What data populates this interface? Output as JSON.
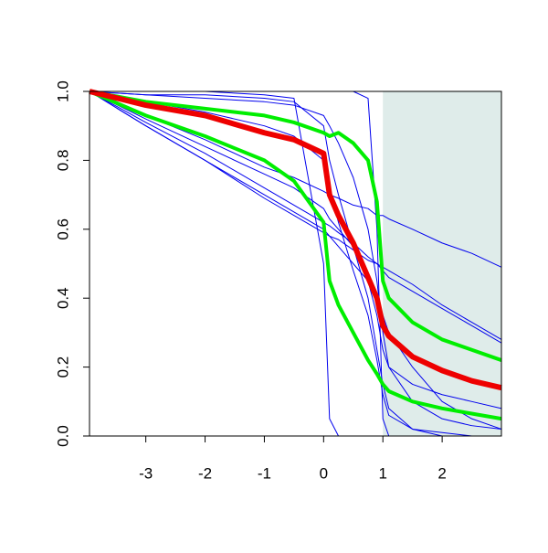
{
  "chart_data": {
    "type": "line",
    "x": [
      -3.95,
      -3,
      -2,
      -1,
      -0.5,
      0,
      0.1,
      0.25,
      0.5,
      0.75,
      0.9,
      1,
      1.1,
      1.5,
      2,
      2.5,
      3
    ],
    "xlim": [
      -3.95,
      3
    ],
    "xticks": [
      -3,
      -2,
      -1,
      0,
      1,
      2
    ],
    "ylim": [
      0,
      1
    ],
    "yticks": [
      {
        "value": 0,
        "label": "0.0"
      },
      {
        "value": 0.2,
        "label": "0.2"
      },
      {
        "value": 0.4,
        "label": "0.4"
      },
      {
        "value": 0.6,
        "label": "0.6"
      },
      {
        "value": 0.8,
        "label": "0.8"
      },
      {
        "value": 1,
        "label": "1.0"
      }
    ],
    "shaded_region": {
      "xlim": [
        1,
        3
      ],
      "color": "#dfecea"
    },
    "series": [
      {
        "color": "#0000ee",
        "line_width": 1,
        "values": [
          1,
          0.93,
          0.86,
          0.78,
          0.75,
          0.71,
          0.7,
          0.69,
          0.67,
          0.66,
          0.64,
          0.64,
          0.63,
          0.6,
          0.56,
          0.53,
          0.49
        ]
      },
      {
        "color": "#0000ee",
        "line_width": 1,
        "values": [
          1,
          0.9,
          0.8,
          0.69,
          0.64,
          0.59,
          0.58,
          0.57,
          0.54,
          0.51,
          0.5,
          0.49,
          0.48,
          0.44,
          0.38,
          0.33,
          0.28
        ]
      },
      {
        "color": "#0000ee",
        "line_width": 1,
        "values": [
          1,
          0.9,
          0.8,
          0.7,
          0.65,
          0.6,
          0.58,
          0.55,
          0.5,
          0.45,
          0.4,
          0.35,
          0.3,
          0.2,
          0.1,
          0.05,
          0.02
        ]
      },
      {
        "color": "#0000ee",
        "line_width": 1,
        "values": [
          1,
          1,
          1,
          0.99,
          0.98,
          0.5,
          0.05,
          0,
          0,
          0,
          0,
          0,
          0,
          0,
          0,
          0,
          0
        ]
      },
      {
        "color": "#0000ee",
        "line_width": 1,
        "values": [
          1,
          1,
          1,
          1,
          1,
          1,
          1,
          1,
          1,
          0.98,
          0.6,
          0.05,
          0,
          0,
          0,
          0,
          0
        ]
      },
      {
        "color": "#0000ee",
        "line_width": 1,
        "values": [
          1,
          0.99,
          0.99,
          0.98,
          0.97,
          0.9,
          0.8,
          0.7,
          0.55,
          0.4,
          0.25,
          0.15,
          0.08,
          0.02,
          0,
          0,
          0
        ]
      },
      {
        "color": "#0000ee",
        "line_width": 1,
        "values": [
          1,
          0.97,
          0.94,
          0.9,
          0.87,
          0.8,
          0.72,
          0.62,
          0.48,
          0.35,
          0.22,
          0.12,
          0.06,
          0.02,
          0.01,
          0,
          0
        ]
      },
      {
        "color": "#0000ee",
        "line_width": 1,
        "values": [
          1,
          0.92,
          0.84,
          0.76,
          0.72,
          0.66,
          0.63,
          0.6,
          0.55,
          0.45,
          0.35,
          0.25,
          0.2,
          0.15,
          0.12,
          0.1,
          0.08
        ]
      },
      {
        "color": "#0000ee",
        "line_width": 1,
        "values": [
          1,
          0.91,
          0.82,
          0.72,
          0.67,
          0.62,
          0.61,
          0.59,
          0.56,
          0.52,
          0.5,
          0.48,
          0.46,
          0.42,
          0.37,
          0.32,
          0.27
        ]
      },
      {
        "color": "#0000ee",
        "line_width": 1,
        "values": [
          1,
          0.99,
          0.98,
          0.97,
          0.96,
          0.93,
          0.9,
          0.85,
          0.75,
          0.6,
          0.45,
          0.3,
          0.2,
          0.1,
          0.05,
          0.03,
          0.02
        ]
      },
      {
        "color": "#00ee00",
        "line_width": 4,
        "values": [
          1,
          0.97,
          0.95,
          0.93,
          0.91,
          0.88,
          0.87,
          0.88,
          0.85,
          0.8,
          0.68,
          0.45,
          0.4,
          0.33,
          0.28,
          0.25,
          0.22
        ]
      },
      {
        "color": "#00ee00",
        "line_width": 4,
        "values": [
          1,
          0.93,
          0.87,
          0.8,
          0.74,
          0.62,
          0.45,
          0.38,
          0.3,
          0.22,
          0.18,
          0.15,
          0.13,
          0.1,
          0.08,
          0.065,
          0.05
        ]
      },
      {
        "color": "#ee0000",
        "line_width": 6,
        "values": [
          1,
          0.96,
          0.93,
          0.88,
          0.86,
          0.82,
          0.7,
          0.64,
          0.56,
          0.46,
          0.4,
          0.32,
          0.29,
          0.23,
          0.19,
          0.16,
          0.14
        ]
      }
    ]
  }
}
